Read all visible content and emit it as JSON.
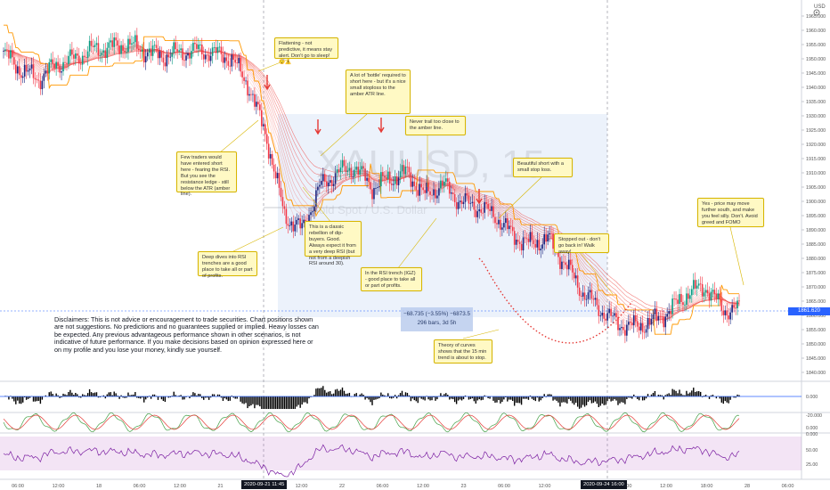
{
  "symbol": "XAUUSD",
  "interval": "15",
  "description": "Gold Spot / U.S. Dollar",
  "currency": "USD",
  "current_price": "1861.620",
  "price_axis": {
    "min": 1835,
    "max": 1970,
    "ticks": [
      "1965.000",
      "1960.000",
      "1955.000",
      "1950.000",
      "1945.000",
      "1940.000",
      "1935.000",
      "1930.000",
      "1925.000",
      "1920.000",
      "1915.000",
      "1910.000",
      "1905.000",
      "1900.000",
      "1895.000",
      "1890.000",
      "1885.000",
      "1880.000",
      "1875.000",
      "1870.000",
      "1865.000",
      "1860.000",
      "1855.000",
      "1850.000",
      "1845.000",
      "1840.000"
    ]
  },
  "macd_axis": {
    "ticks": [
      "0.000",
      "-20.000"
    ]
  },
  "stoch_axis": {
    "ticks": [
      "0.000",
      "0.000"
    ]
  },
  "rsi_axis": {
    "ticks": [
      "50.00",
      "25.00"
    ]
  },
  "time_axis": {
    "labels": [
      "06:00",
      "12:00",
      "18",
      "06:00",
      "12:00",
      "21",
      "06:00",
      "12:00",
      "22",
      "06:00",
      "12:00",
      "23",
      "06:00",
      "12:00",
      "24",
      "06:00",
      "12:00",
      "18:00",
      "28",
      "06:00"
    ]
  },
  "date_tags": [
    "2020-09-21  11:45",
    "2020-09-24  16:00"
  ],
  "measure": {
    "line1": "−68.735 (−3.55%) −6873.5",
    "line2": "296 bars, 3d 5h"
  },
  "disclaimer": "Disclaimers: This is not advice or encouragement to trade securities. Chart positions shown are not suggestions. No predictions and no guarantees supplied or implied. Heavy losses can be expected. Any previous advantageous performance shown in other scenarios, is not indicative of future performance.  If you make decisions based on opinion expressed here or on my profile and you lose your money, kindly sue yourself.",
  "callouts": [
    {
      "text": "Flattening - not predictive, it means stay alert. Don't go to sleep! 😴⚠️"
    },
    {
      "text": "A lot of 'bottle' required to short here - but it's a nice small stoploss to the amber ATR line."
    },
    {
      "text": "Never trail too close to the amber line."
    },
    {
      "text": "Few traders would have entered short here - fearing the RSI. But you see the resistance ledge - still below the ATR (amber line)."
    },
    {
      "text": "This is a classic rebellion of dip-buyers. Good. Always expect it from a very deep RSI (but not from a deepish RSI around 30)."
    },
    {
      "text": "Beautiful short with a small stop loss."
    },
    {
      "text": "Yes - price may move further south, and make you feel silly. Don't. Avoid greed and FOMO"
    },
    {
      "text": "Stopped out - don't go back in! Walk away!"
    },
    {
      "text": "Deep dives into RSI trenches are a good place to take all or part of profits."
    },
    {
      "text": "In the RSI trench (IGZ) - good place to take all or part of profits."
    },
    {
      "text": "Theory of curves shows that the 15 min trend is about to stop."
    }
  ],
  "colors": {
    "up": "#089981",
    "down": "#f23645",
    "candle_up": "#1a237e",
    "atr": "#ff9800",
    "ribbon_dn": "#ef5350",
    "ribbon_up": "#4caf50",
    "rsi": "#7b1fa2",
    "price_tag": "#2962ff"
  },
  "chart_data": {
    "type": "candlestick",
    "series": [
      {
        "name": "XAUUSD",
        "x_index": [
          0,
          10,
          20,
          30,
          40,
          50,
          60,
          70,
          80,
          90,
          100,
          110,
          120,
          130,
          140,
          150,
          160,
          170,
          180,
          190,
          200,
          210,
          220,
          230,
          240,
          250,
          260,
          270,
          280,
          290,
          300,
          310,
          320,
          330,
          340,
          350,
          360,
          370,
          380,
          390,
          400,
          410
        ],
        "close": [
          1952,
          1946,
          1943,
          1948,
          1950,
          1953,
          1954,
          1955,
          1953,
          1951,
          1952,
          1953,
          1952,
          1950,
          1940,
          1922,
          1895,
          1890,
          1905,
          1910,
          1912,
          1905,
          1908,
          1910,
          1902,
          1906,
          1900,
          1898,
          1895,
          1888,
          1885,
          1887,
          1878,
          1868,
          1862,
          1857,
          1856,
          1858,
          1862,
          1868,
          1870,
          1862
        ]
      }
    ],
    "y_range": [
      1835,
      1970
    ],
    "annotations": [
      "dashed red curve (theory of curves) under the 23-24 lows",
      "red arrows marking short entries"
    ]
  }
}
